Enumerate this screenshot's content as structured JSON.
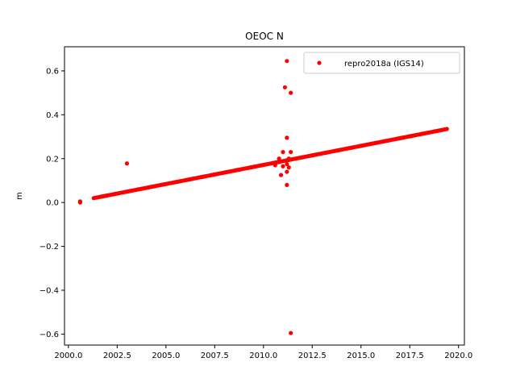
{
  "chart_data": {
    "type": "scatter",
    "title": "OEOC N",
    "xlabel": "",
    "ylabel": "m",
    "xlim": [
      1999.8,
      2020.3
    ],
    "ylim": [
      -0.65,
      0.71
    ],
    "x_ticks": [
      2000.0,
      2002.5,
      2005.0,
      2007.5,
      2010.0,
      2012.5,
      2015.0,
      2017.5,
      2020.0
    ],
    "x_tick_labels": [
      "2000.0",
      "2002.5",
      "2005.0",
      "2007.5",
      "2010.0",
      "2012.5",
      "2015.0",
      "2017.5",
      "2020.0"
    ],
    "y_ticks": [
      -0.6,
      -0.4,
      -0.2,
      0.0,
      0.2,
      0.4,
      0.6
    ],
    "y_tick_labels": [
      "−0.6",
      "−0.4",
      "−0.2",
      "0.0",
      "0.2",
      "0.4",
      "0.6"
    ],
    "grid": false,
    "legend_position": "top-right",
    "series": [
      {
        "name": "repro2018a (IGS14)",
        "color": "#ff0000",
        "marker": "circle",
        "trend": {
          "x_start": 2001.3,
          "x_end": 2019.4,
          "y_start": 0.02,
          "y_end": 0.335
        },
        "outliers": [
          {
            "x": 2000.6,
            "y": 0.0
          },
          {
            "x": 2000.6,
            "y": 0.005
          },
          {
            "x": 2003.0,
            "y": 0.178
          },
          {
            "x": 2010.6,
            "y": 0.17
          },
          {
            "x": 2010.8,
            "y": 0.2
          },
          {
            "x": 2010.9,
            "y": 0.125
          },
          {
            "x": 2011.0,
            "y": 0.23
          },
          {
            "x": 2011.0,
            "y": 0.165
          },
          {
            "x": 2011.1,
            "y": 0.525
          },
          {
            "x": 2011.2,
            "y": 0.645
          },
          {
            "x": 2011.2,
            "y": 0.295
          },
          {
            "x": 2011.2,
            "y": 0.175
          },
          {
            "x": 2011.2,
            "y": 0.14
          },
          {
            "x": 2011.2,
            "y": 0.08
          },
          {
            "x": 2011.3,
            "y": 0.2
          },
          {
            "x": 2011.3,
            "y": 0.16
          },
          {
            "x": 2011.4,
            "y": 0.5
          },
          {
            "x": 2011.4,
            "y": 0.23
          },
          {
            "x": 2011.4,
            "y": -0.595
          }
        ]
      }
    ]
  }
}
